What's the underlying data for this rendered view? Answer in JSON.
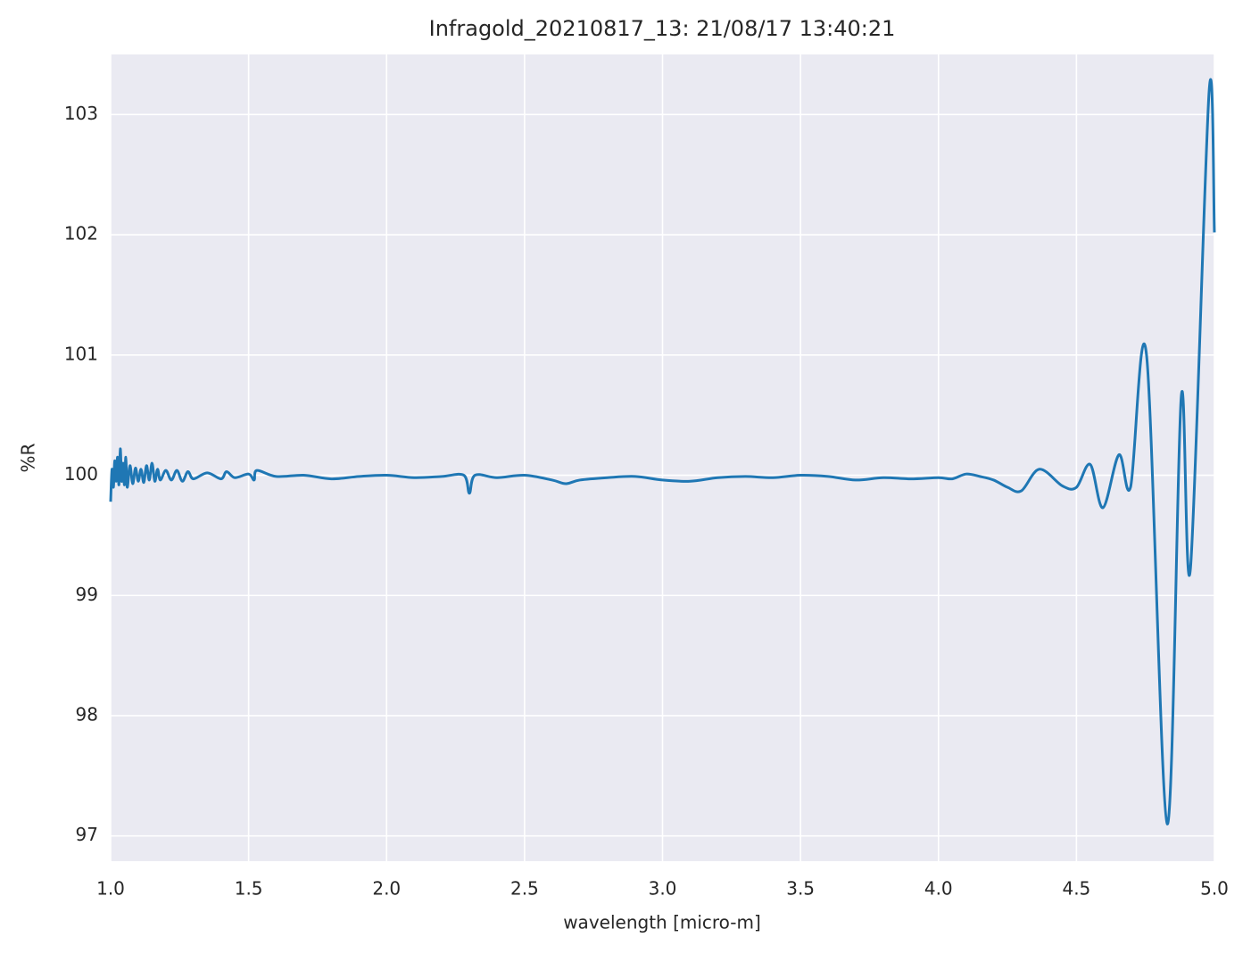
{
  "chart_data": {
    "type": "line",
    "title": "Infragold_20210817_13:  21/08/17 13:40:21",
    "x_label": "wavelength [micro-m]",
    "y_label": "%R",
    "color": "#1f77b4",
    "grid": true,
    "xlim": [
      1.0,
      5.0
    ],
    "ylim": [
      96.79,
      103.5
    ],
    "xticks": [
      {
        "value": 1,
        "label": "1.0"
      },
      1.5,
      {
        "value": 2,
        "label": "2.0"
      },
      2.5,
      {
        "value": 3,
        "label": "3.0"
      },
      3.5,
      {
        "value": 4,
        "label": "4.0"
      },
      4.5,
      {
        "value": 5,
        "label": "5.0"
      }
    ],
    "yticks": [
      97,
      98,
      99,
      100,
      101,
      102,
      103
    ],
    "x": [
      1.0,
      1.005,
      1.01,
      1.015,
      1.02,
      1.025,
      1.03,
      1.035,
      1.04,
      1.045,
      1.05,
      1.055,
      1.06,
      1.07,
      1.08,
      1.09,
      1.1,
      1.11,
      1.12,
      1.13,
      1.14,
      1.15,
      1.16,
      1.17,
      1.18,
      1.2,
      1.22,
      1.24,
      1.26,
      1.28,
      1.3,
      1.35,
      1.4,
      1.42,
      1.45,
      1.5,
      1.52,
      1.53,
      1.6,
      1.7,
      1.8,
      1.9,
      2.0,
      2.1,
      2.2,
      2.28,
      2.3,
      2.32,
      2.4,
      2.5,
      2.6,
      2.65,
      2.7,
      2.8,
      2.9,
      3.0,
      3.1,
      3.2,
      3.3,
      3.4,
      3.5,
      3.6,
      3.7,
      3.8,
      3.9,
      4.0,
      4.05,
      4.1,
      4.15,
      4.2,
      4.25,
      4.3,
      4.366,
      4.45,
      4.5,
      4.55,
      4.596,
      4.654,
      4.696,
      4.754,
      4.829,
      4.88,
      4.913,
      4.981,
      5.0
    ],
    "values": [
      99.78,
      100.05,
      99.9,
      100.12,
      99.95,
      100.15,
      99.92,
      100.22,
      99.95,
      100.1,
      99.92,
      100.15,
      99.9,
      100.08,
      99.93,
      100.06,
      99.95,
      100.05,
      99.94,
      100.08,
      99.96,
      100.1,
      99.95,
      100.05,
      99.96,
      100.04,
      99.96,
      100.04,
      99.95,
      100.03,
      99.97,
      100.02,
      99.97,
      100.03,
      99.98,
      100.01,
      99.96,
      100.04,
      99.99,
      100.0,
      99.97,
      99.99,
      100.0,
      99.98,
      99.99,
      100.0,
      99.85,
      100.0,
      99.98,
      100.0,
      99.96,
      99.93,
      99.96,
      99.98,
      99.99,
      99.96,
      99.95,
      99.98,
      99.99,
      99.98,
      100.0,
      99.99,
      99.96,
      99.98,
      99.97,
      99.98,
      99.97,
      100.01,
      99.99,
      99.96,
      99.9,
      99.87,
      100.05,
      99.91,
      99.9,
      100.09,
      99.73,
      100.17,
      99.9,
      101.0,
      97.1,
      100.66,
      99.22,
      103.2,
      102.02
    ]
  }
}
